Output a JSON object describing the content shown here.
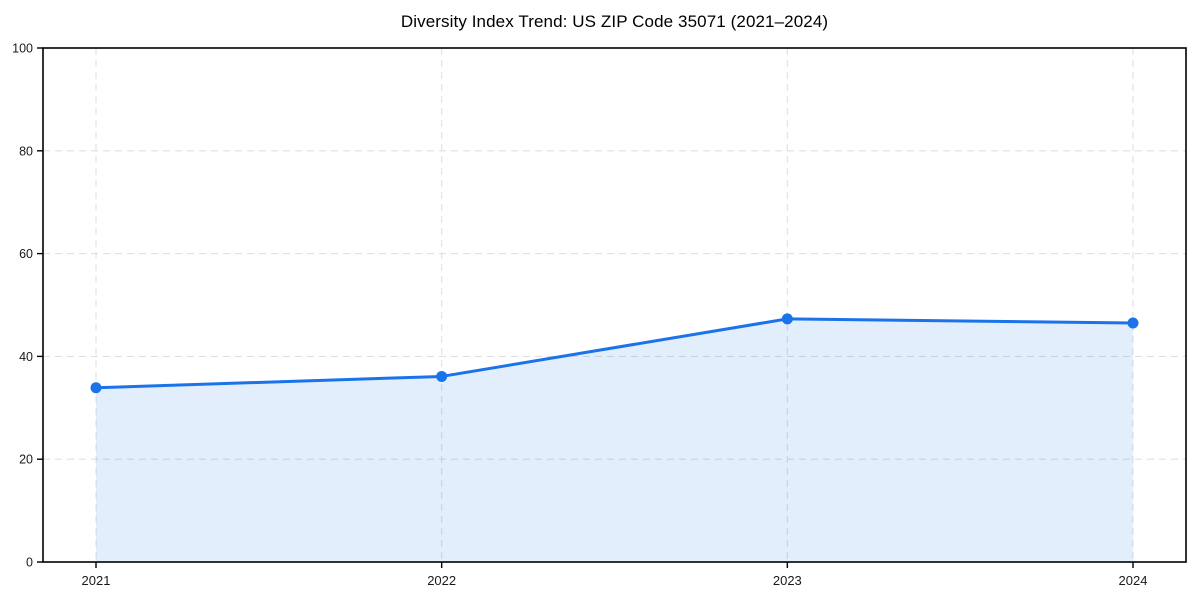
{
  "title": "Diversity Index Trend: US ZIP Code 35071 (2021–2024)",
  "colors": {
    "line": "#1a73e8",
    "marker": "#1a73e8",
    "area_fill": "rgba(26,115,232,0.12)",
    "gridline": "#e0e0e0",
    "spine": "#000000",
    "tick_label": "#1a1a1a",
    "background": "#ffffff"
  },
  "chart_data": {
    "type": "area",
    "title": "Diversity Index Trend: US ZIP Code 35071 (2021–2024)",
    "categories": [
      "2021",
      "2022",
      "2023",
      "2024"
    ],
    "series": [
      {
        "name": "Diversity Index",
        "values": [
          33.9,
          36.1,
          47.3,
          46.5
        ]
      }
    ],
    "xlabel": "",
    "ylabel": "",
    "ylim": [
      0,
      100
    ],
    "yticks": [
      0,
      20,
      40,
      60,
      80,
      100
    ],
    "grid": true,
    "grid_style": "dashed",
    "legend": false,
    "marker": "circle",
    "fill_to_zero": true
  }
}
